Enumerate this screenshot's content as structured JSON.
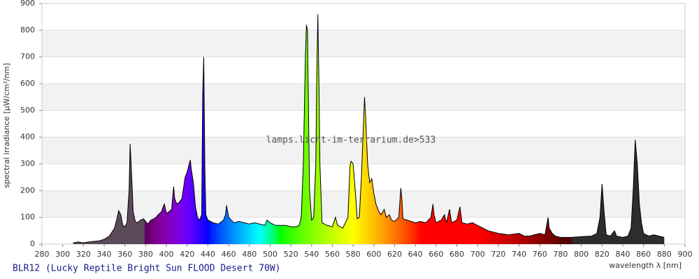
{
  "chart_data": {
    "type": "spectrum",
    "title": "BLR12 (Lucky Reptile Bright Sun FLOOD Desert 70W)",
    "watermark": "lamps.licht-im-terrarium.de>533",
    "x_label": "wavelength λ [nm]",
    "y_label": "spectral irradiance [µW/cm²/nm]",
    "xlim": [
      280,
      900
    ],
    "ylim": [
      0,
      900
    ],
    "xticks": [
      280,
      300,
      320,
      340,
      360,
      380,
      400,
      420,
      440,
      460,
      480,
      500,
      520,
      540,
      560,
      580,
      600,
      620,
      640,
      660,
      680,
      700,
      720,
      740,
      760,
      780,
      800,
      820,
      840,
      860,
      880,
      900
    ],
    "yticks": [
      0,
      100,
      200,
      300,
      400,
      500,
      600,
      700,
      800,
      900
    ],
    "grid": true,
    "x": [
      310,
      315,
      320,
      325,
      330,
      335,
      340,
      345,
      350,
      352,
      354,
      356,
      358,
      360,
      362,
      364,
      365,
      366,
      368,
      370,
      372,
      375,
      378,
      380,
      382,
      385,
      388,
      390,
      392,
      395,
      398,
      400,
      402,
      405,
      407,
      408,
      410,
      412,
      415,
      418,
      420,
      422,
      423,
      424,
      426,
      428,
      430,
      432,
      434,
      435,
      436,
      437,
      438,
      440,
      445,
      450,
      455,
      457,
      458,
      460,
      465,
      470,
      475,
      480,
      485,
      490,
      495,
      497,
      500,
      505,
      510,
      515,
      520,
      525,
      528,
      530,
      532,
      534,
      535,
      536,
      537,
      538,
      540,
      542,
      544,
      545,
      546,
      547,
      548,
      550,
      555,
      560,
      563,
      565,
      570,
      575,
      577,
      578,
      580,
      582,
      584,
      586,
      588,
      590,
      591,
      592,
      594,
      596,
      598,
      600,
      602,
      605,
      607,
      610,
      612,
      615,
      617,
      620,
      624,
      626,
      627,
      628,
      632,
      640,
      645,
      650,
      655,
      657,
      658,
      660,
      665,
      668,
      670,
      673,
      675,
      680,
      683,
      685,
      690,
      695,
      700,
      705,
      710,
      720,
      730,
      740,
      745,
      750,
      760,
      765,
      768,
      769,
      772,
      775,
      780,
      790,
      800,
      810,
      815,
      818,
      820,
      822,
      824,
      828,
      832,
      834,
      840,
      845,
      848,
      850,
      852,
      854,
      856,
      858,
      860,
      865,
      870,
      875,
      880
    ],
    "values": [
      5,
      8,
      5,
      8,
      10,
      12,
      18,
      30,
      60,
      90,
      125,
      110,
      70,
      65,
      80,
      200,
      375,
      300,
      120,
      85,
      80,
      90,
      95,
      85,
      75,
      90,
      95,
      100,
      110,
      120,
      150,
      115,
      120,
      130,
      215,
      170,
      150,
      155,
      170,
      250,
      270,
      300,
      315,
      280,
      230,
      140,
      100,
      90,
      110,
      560,
      700,
      300,
      110,
      90,
      80,
      75,
      90,
      110,
      145,
      100,
      80,
      85,
      80,
      75,
      80,
      75,
      70,
      90,
      80,
      70,
      70,
      70,
      65,
      65,
      70,
      100,
      300,
      700,
      820,
      800,
      500,
      200,
      90,
      100,
      300,
      640,
      860,
      620,
      300,
      80,
      70,
      65,
      100,
      70,
      60,
      100,
      290,
      310,
      300,
      200,
      95,
      100,
      250,
      450,
      550,
      480,
      300,
      230,
      245,
      190,
      150,
      120,
      110,
      130,
      100,
      110,
      90,
      85,
      100,
      210,
      170,
      95,
      90,
      80,
      85,
      80,
      100,
      150,
      110,
      80,
      90,
      110,
      80,
      130,
      80,
      90,
      140,
      80,
      75,
      80,
      70,
      60,
      50,
      40,
      35,
      40,
      30,
      30,
      40,
      35,
      100,
      60,
      40,
      30,
      25,
      25,
      28,
      30,
      40,
      100,
      225,
      120,
      35,
      30,
      50,
      30,
      25,
      30,
      60,
      200,
      390,
      300,
      150,
      80,
      40,
      30,
      35,
      30,
      25
    ]
  }
}
